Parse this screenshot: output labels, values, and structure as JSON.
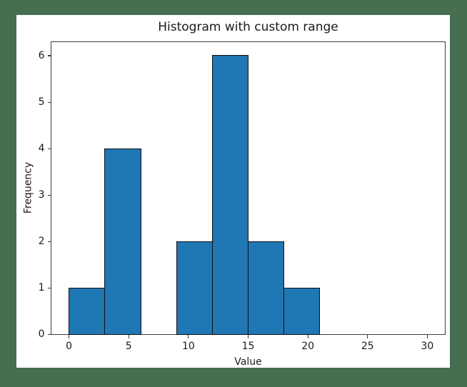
{
  "window": {
    "background_color": "#486E50",
    "figure_background": "#ffffff"
  },
  "chart_data": {
    "type": "bar",
    "subtype": "histogram",
    "title": "Histogram with custom range",
    "xlabel": "Value",
    "ylabel": "Frequency",
    "bin_edges": [
      0,
      3,
      6,
      9,
      12,
      15,
      18,
      21,
      24,
      27,
      30
    ],
    "frequencies": [
      1,
      4,
      0,
      2,
      6,
      2,
      1,
      0,
      0,
      0
    ],
    "x_ticks": [
      0,
      5,
      10,
      15,
      20,
      25,
      30
    ],
    "y_ticks": [
      0,
      1,
      2,
      3,
      4,
      5,
      6
    ],
    "xlim": [
      -1.5,
      31.5
    ],
    "ylim": [
      0,
      6.3
    ],
    "bar_color": "#1f77b4",
    "bar_edge_color": "#111111",
    "axis_color": "#3c3c3c",
    "text_color": "#1a1a1a",
    "grid": false,
    "legend_position": null
  }
}
